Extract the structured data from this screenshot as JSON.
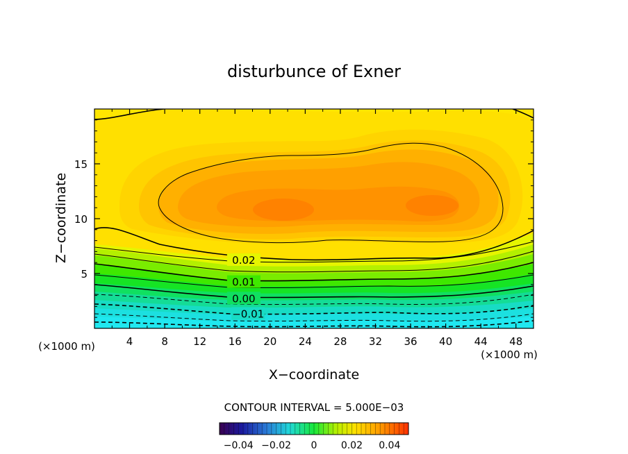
{
  "chart_data": {
    "type": "contour",
    "title": "disturbunce of Exner",
    "xlabel": "X−coordinate",
    "ylabel": "Z−coordinate",
    "x_unit_label": "(×1000 m)",
    "x_unit_label_right": "(×1000 m)",
    "xlim": [
      0,
      50
    ],
    "ylim": [
      0,
      20
    ],
    "x_ticks": [
      4,
      8,
      12,
      16,
      20,
      24,
      28,
      32,
      36,
      40,
      44,
      48
    ],
    "y_ticks": [
      5,
      10,
      15
    ],
    "contour_interval_text": "CONTOUR INTERVAL = 5.000E−03",
    "contour_labels": [
      {
        "text": "0.02",
        "value": 0.02,
        "x": 17,
        "z": 6.2
      },
      {
        "text": "0.01",
        "value": 0.01,
        "x": 17,
        "z": 4.2
      },
      {
        "text": "0.00",
        "value": 0.0,
        "x": 17,
        "z": 2.7
      },
      {
        "text": "−0.01",
        "value": -0.01,
        "x": 17.5,
        "z": 1.3
      }
    ],
    "colorbar": {
      "range": [
        -0.05,
        0.05
      ],
      "tick_values": [
        -0.04,
        -0.02,
        0,
        0.02,
        0.04
      ],
      "tick_labels": [
        "−0.04",
        "−0.02",
        "0",
        "0.02",
        "0.04"
      ]
    },
    "field_description_values": {
      "max_center_1": {
        "x": 22,
        "z": 11,
        "value": 0.04
      },
      "max_center_2": {
        "x": 38,
        "z": 11.3,
        "value": 0.04
      },
      "min_near_surface": {
        "value": -0.02
      }
    }
  }
}
